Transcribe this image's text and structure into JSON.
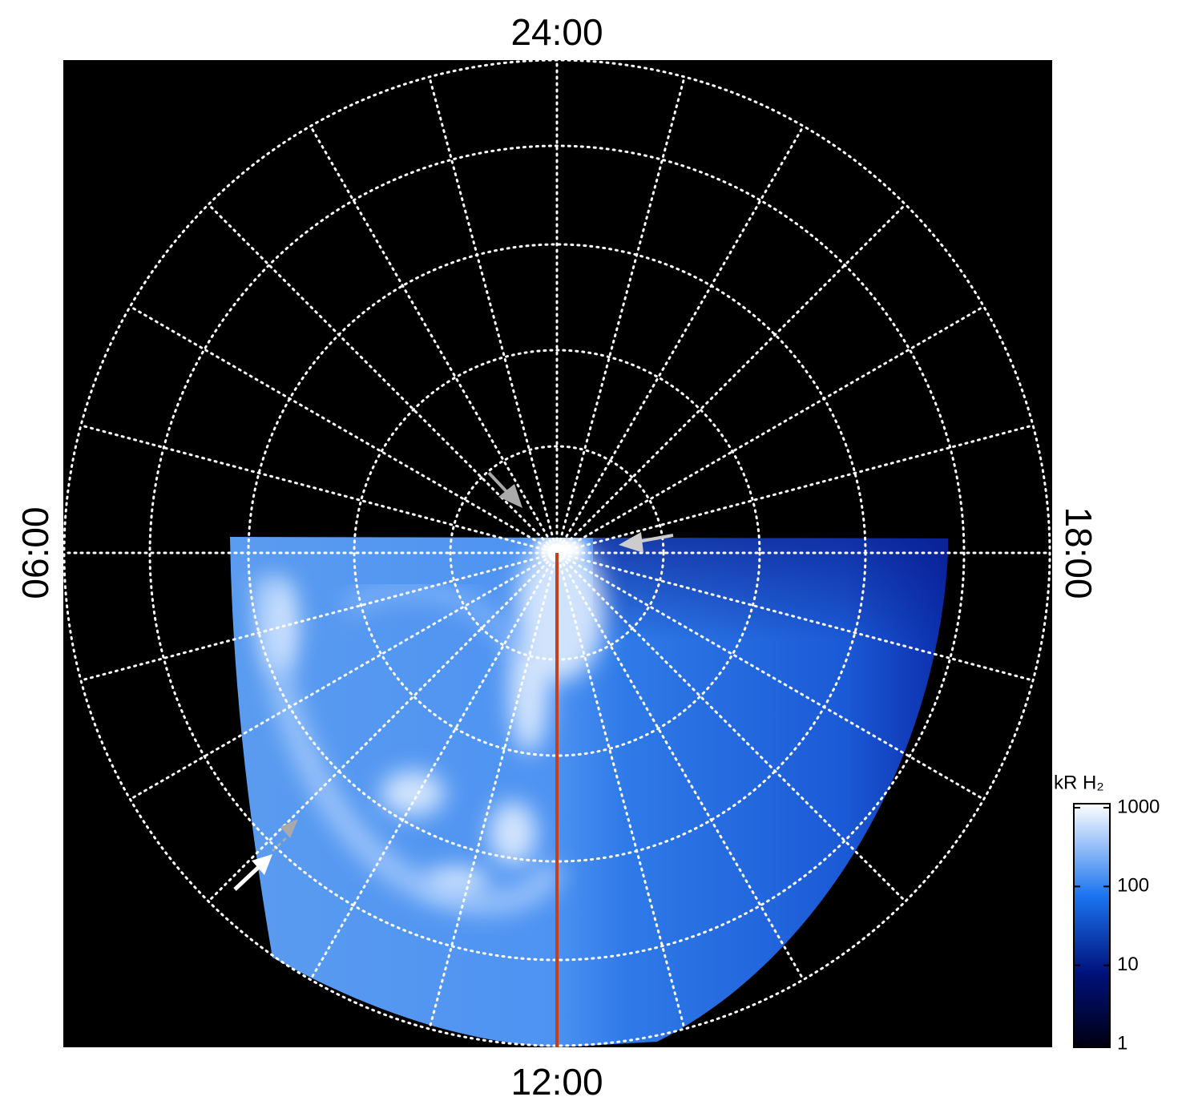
{
  "figure": {
    "labels": {
      "top": "24:00",
      "bottom": "12:00",
      "left": "06:00",
      "right": "18:00"
    },
    "colorbar": {
      "title": "kR H₂",
      "scale": "log",
      "lim": [
        1,
        1000
      ],
      "ticks": [
        1,
        10,
        100,
        1000
      ]
    }
  }
}
